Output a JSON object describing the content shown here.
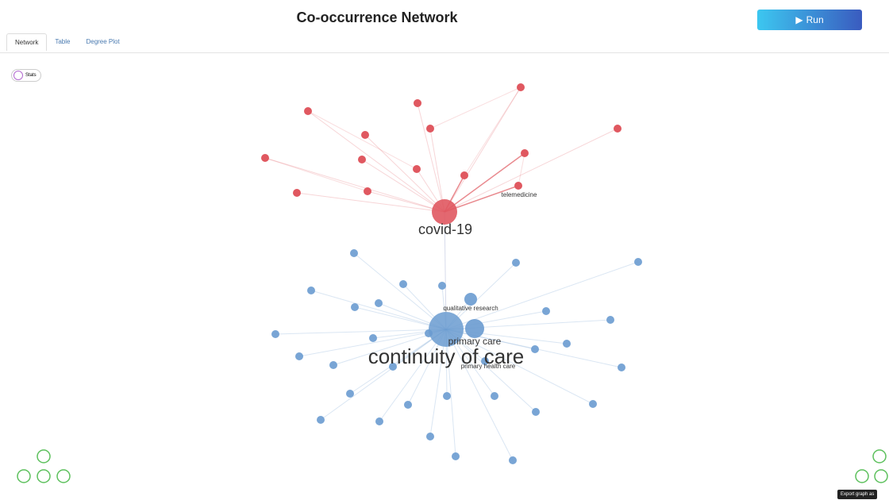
{
  "header": {
    "title": "Co-occurrence Network",
    "run_button": "Run"
  },
  "tabs": [
    "Network",
    "Table",
    "Degree Plot"
  ],
  "stats_button": "Stats",
  "nodes": [
    {
      "label": "covid-19"
    },
    {
      "label": "telemedicine"
    },
    {
      "label": "continuity of care"
    },
    {
      "label": "primary care"
    },
    {
      "label": "qualitative research"
    },
    {
      "label": "primary health care"
    }
  ],
  "tooltip": "Export graph as"
}
